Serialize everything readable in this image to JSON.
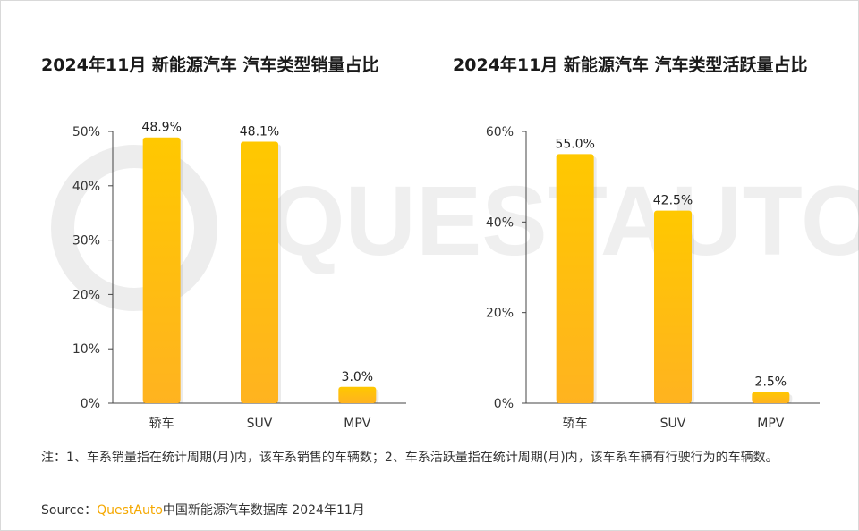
{
  "charts": [
    {
      "title": "2024年11月 新能源汽车 汽车类型销量占比"
    },
    {
      "title": "2024年11月 新能源汽车 汽车类型活跃量占比"
    }
  ],
  "chart_data": [
    {
      "type": "bar",
      "title": "2024年11月 新能源汽车 汽车类型销量占比",
      "categories": [
        "轿车",
        "SUV",
        "MPV"
      ],
      "values": [
        48.9,
        48.1,
        3.0
      ],
      "data_labels": [
        "48.9%",
        "48.1%",
        "3.0%"
      ],
      "yticks": [
        "0%",
        "10%",
        "20%",
        "30%",
        "40%",
        "50%"
      ],
      "ylim": [
        0,
        50
      ],
      "grid": false,
      "bar_color": "#ffc000"
    },
    {
      "type": "bar",
      "title": "2024年11月 新能源汽车 汽车类型活跃量占比",
      "categories": [
        "轿车",
        "SUV",
        "MPV"
      ],
      "values": [
        55.0,
        42.5,
        2.5
      ],
      "data_labels": [
        "55.0%",
        "42.5%",
        "2.5%"
      ],
      "yticks": [
        "0%",
        "20%",
        "40%",
        "60%"
      ],
      "ylim": [
        0,
        60
      ],
      "grid": false,
      "bar_color": "#ffc000"
    }
  ],
  "note": "注：1、车系销量指在统计周期(月)内，该车系销售的车辆数；2、车系活跃量指在统计周期(月)内，该车系车辆有行驶行为的车辆数。",
  "source": {
    "prefix": "Source：",
    "brand": "QuestAuto",
    "text": "中国新能源汽车数据库 2024年11月"
  },
  "watermark": {
    "text": "QUESTAUTO"
  },
  "colors": {
    "bar_top": "#ffc800",
    "bar_bottom": "#ffb320",
    "brand": "#f5a800"
  }
}
